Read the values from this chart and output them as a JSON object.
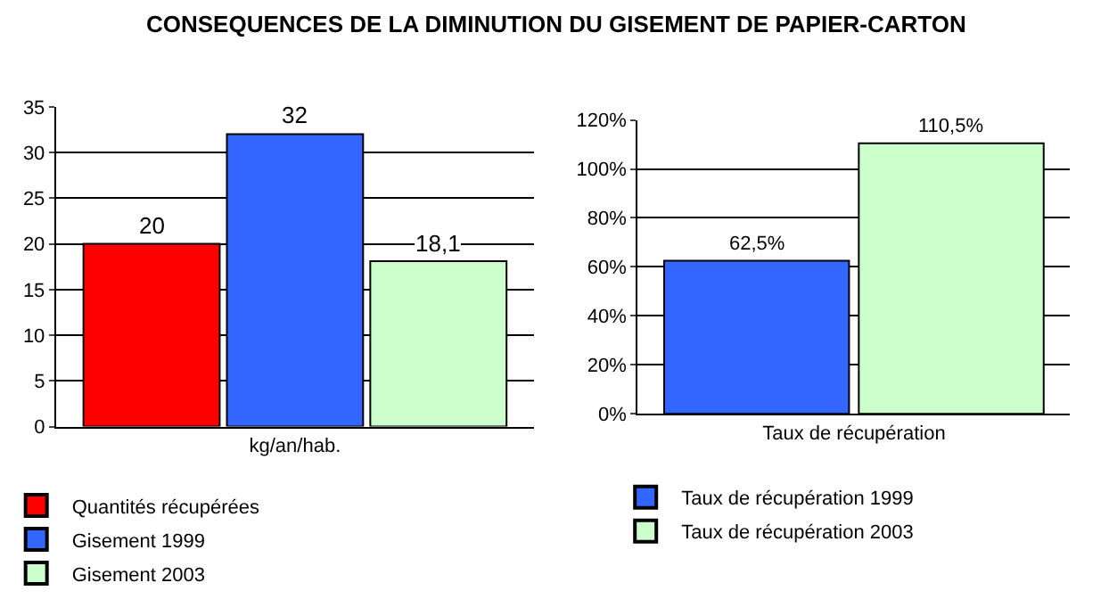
{
  "chart_data": [
    {
      "type": "bar",
      "title": "CONSEQUENCES DE LA DIMINUTION DU GISEMENT DE PAPIER-CARTON",
      "categories": [
        "kg/an/hab."
      ],
      "series": [
        {
          "name": "Quantités récupérées",
          "color": "#ff0000",
          "values": [
            20
          ],
          "value_labels": [
            "20"
          ]
        },
        {
          "name": "Gisement 1999",
          "color": "#3366ff",
          "values": [
            32
          ],
          "value_labels": [
            "32"
          ]
        },
        {
          "name": "Gisement 2003",
          "color": "#ccffcc",
          "values": [
            18.1
          ],
          "value_labels": [
            "18,1"
          ]
        }
      ],
      "ylim": [
        0,
        35
      ],
      "yticks": [
        0,
        5,
        10,
        15,
        20,
        25,
        30,
        35
      ],
      "grid": "y",
      "legend": "bottom"
    },
    {
      "type": "bar",
      "categories": [
        "Taux de récupération"
      ],
      "series": [
        {
          "name": "Taux de récupération 1999",
          "color": "#3366ff",
          "values": [
            62.5
          ],
          "value_labels": [
            "62,5%"
          ]
        },
        {
          "name": "Taux de récupération 2003",
          "color": "#ccffcc",
          "values": [
            110.5
          ],
          "value_labels": [
            "110,5%"
          ]
        }
      ],
      "ylim": [
        0,
        120
      ],
      "yticks": [
        {
          "value": 0,
          "label": "0%"
        },
        {
          "value": 20,
          "label": "20%"
        },
        {
          "value": 40,
          "label": "40%"
        },
        {
          "value": 60,
          "label": "60%"
        },
        {
          "value": 80,
          "label": "80%"
        },
        {
          "value": 100,
          "label": "100%"
        },
        {
          "value": 120,
          "label": "120%"
        }
      ],
      "grid": "y",
      "legend": "bottom"
    }
  ]
}
